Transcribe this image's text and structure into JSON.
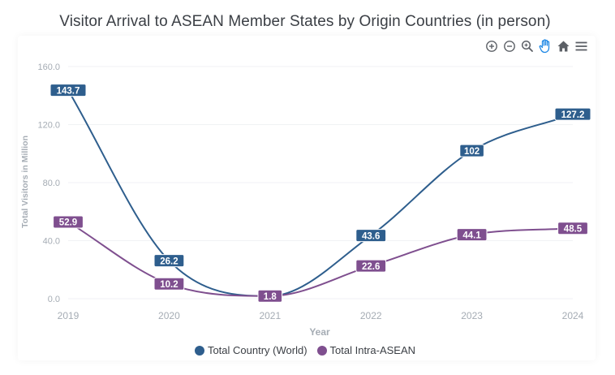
{
  "colors": {
    "world": "#2e5e8d",
    "intra": "#7f4f8f",
    "axis_text": "#a5acb4",
    "grid": "#f0f2f4",
    "title": "#3b3f45"
  },
  "toolbar": {
    "zoom_in": "zoom-in-icon",
    "zoom_out": "zoom-out-icon",
    "zoom": "magnifier-icon",
    "pan": "hand-icon",
    "reset": "home-icon",
    "menu": "menu-icon"
  },
  "chart_data": {
    "type": "line",
    "title": "Visitor Arrival to ASEAN Member States by Origin Countries (in person)",
    "xlabel": "Year",
    "ylabel": "Total Visitors in Million",
    "categories": [
      "2019",
      "2020",
      "2021",
      "2022",
      "2023",
      "2024"
    ],
    "y_ticks": [
      "0.0",
      "40.0",
      "80.0",
      "120.0",
      "160.0"
    ],
    "ylim": [
      0,
      160
    ],
    "grid": true,
    "legend_position": "bottom-center",
    "series": [
      {
        "name": "Total Country (World)",
        "values": [
          143.7,
          26.2,
          1.8,
          43.6,
          102,
          127.2
        ],
        "labels": [
          "143.7",
          "26.2",
          "1.8",
          "43.6",
          "102",
          "127.2"
        ]
      },
      {
        "name": "Total Intra-ASEAN",
        "values": [
          52.9,
          10.2,
          1.8,
          22.6,
          44.1,
          48.5
        ],
        "labels": [
          "52.9",
          "10.2",
          "1.8",
          "22.6",
          "44.1",
          "48.5"
        ]
      }
    ]
  }
}
